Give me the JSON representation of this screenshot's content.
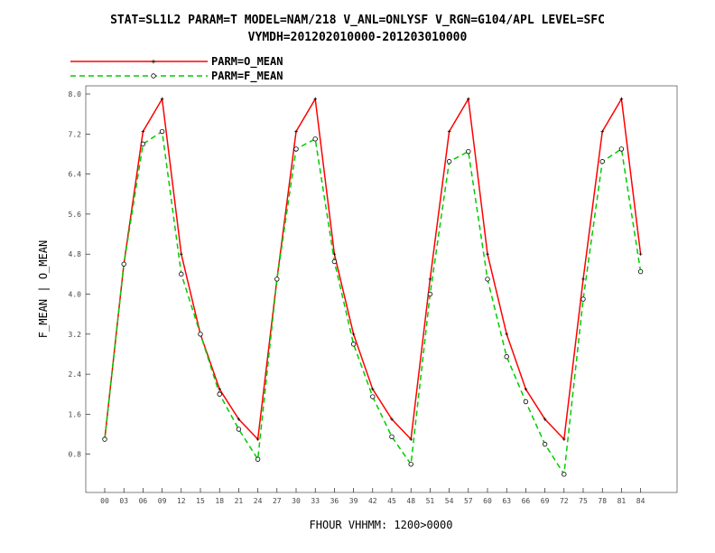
{
  "chart_data": {
    "type": "line",
    "title": "STAT=SL1L2 PARAM=T MODEL=NAM/218 V_ANL=ONLYSF V_RGN=G104/APL LEVEL=SFC",
    "subtitle": "VYMDH=201202010000-201203010000",
    "xlabel": "FHOUR VHHMM: 1200>0000",
    "ylabel": "F_MEAN | O_MEAN",
    "categories": [
      "00",
      "03",
      "06",
      "09",
      "12",
      "15",
      "18",
      "21",
      "24",
      "27",
      "30",
      "33",
      "36",
      "39",
      "42",
      "45",
      "48",
      "51",
      "54",
      "57",
      "60",
      "63",
      "66",
      "69",
      "72",
      "75",
      "78",
      "81",
      "84"
    ],
    "ylim": [
      0.2,
      8.0
    ],
    "yticks": [
      "0.8",
      "1.6",
      "2.4",
      "3.2",
      "4.0",
      "4.8",
      "5.6",
      "6.4",
      "7.2",
      "8.0"
    ],
    "grid": false,
    "legend_position": "top-left",
    "series": [
      {
        "name": "PARM=O_MEAN",
        "color": "#ff0000",
        "dash": "solid",
        "marker": "plus",
        "values": [
          1.1,
          4.6,
          7.25,
          7.9,
          4.8,
          3.2,
          2.1,
          1.5,
          1.1,
          4.3,
          7.25,
          7.9,
          4.8,
          3.2,
          2.1,
          1.5,
          1.1,
          4.3,
          7.25,
          7.9,
          4.8,
          3.2,
          2.1,
          1.5,
          1.1,
          4.3,
          7.25,
          7.9,
          4.8
        ]
      },
      {
        "name": "PARM=F_MEAN",
        "color": "#00cc00",
        "dash": "dashed",
        "marker": "circle",
        "values": [
          1.1,
          4.6,
          7.0,
          7.25,
          4.4,
          3.2,
          2.0,
          1.3,
          0.7,
          4.3,
          6.9,
          7.1,
          4.65,
          3.0,
          1.95,
          1.15,
          0.6,
          4.0,
          6.65,
          6.85,
          4.3,
          2.75,
          1.85,
          1.0,
          0.4,
          3.9,
          6.65,
          6.9,
          4.45
        ]
      }
    ]
  }
}
